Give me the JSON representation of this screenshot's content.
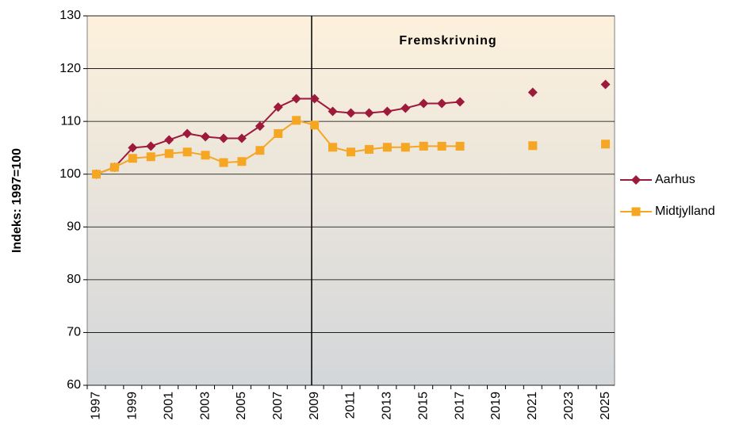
{
  "chart_data": {
    "type": "line",
    "ylabel": "Indeks: 1997=100",
    "annotation": "Fremskrivning",
    "categories": [
      "1997",
      null,
      "1999",
      null,
      "2001",
      null,
      "2003",
      null,
      "2005",
      null,
      "2007",
      null,
      "2009",
      null,
      "2011",
      null,
      "2013",
      null,
      "2015",
      null,
      "2017",
      null,
      "2019",
      null,
      "2021",
      null,
      "2023",
      null,
      "2025"
    ],
    "series": [
      {
        "name": "Aarhus",
        "color": "#9e1a3c",
        "marker": "diamond",
        "values": [
          100,
          101.3,
          105,
          105.3,
          106.5,
          107.7,
          107.1,
          106.8,
          106.8,
          109.1,
          112.7,
          114.3,
          114.3,
          111.9,
          111.6,
          111.6,
          111.9,
          112.5,
          113.4,
          113.4,
          113.7,
          null,
          null,
          null,
          115.5,
          null,
          null,
          null,
          117
        ]
      },
      {
        "name": "Midtjylland",
        "color": "#f5a623",
        "marker": "square",
        "values": [
          100,
          101.3,
          103,
          103.3,
          103.9,
          104.2,
          103.6,
          102.2,
          102.4,
          104.5,
          107.7,
          110.2,
          109.3,
          105.1,
          104.2,
          104.7,
          105.1,
          105.1,
          105.3,
          105.3,
          105.3,
          null,
          null,
          null,
          105.4,
          null,
          null,
          null,
          105.7
        ]
      }
    ],
    "ylim": [
      60,
      130
    ],
    "yticks": [
      60,
      70,
      80,
      90,
      100,
      110,
      120,
      130
    ],
    "grid": true,
    "legend": "right"
  }
}
